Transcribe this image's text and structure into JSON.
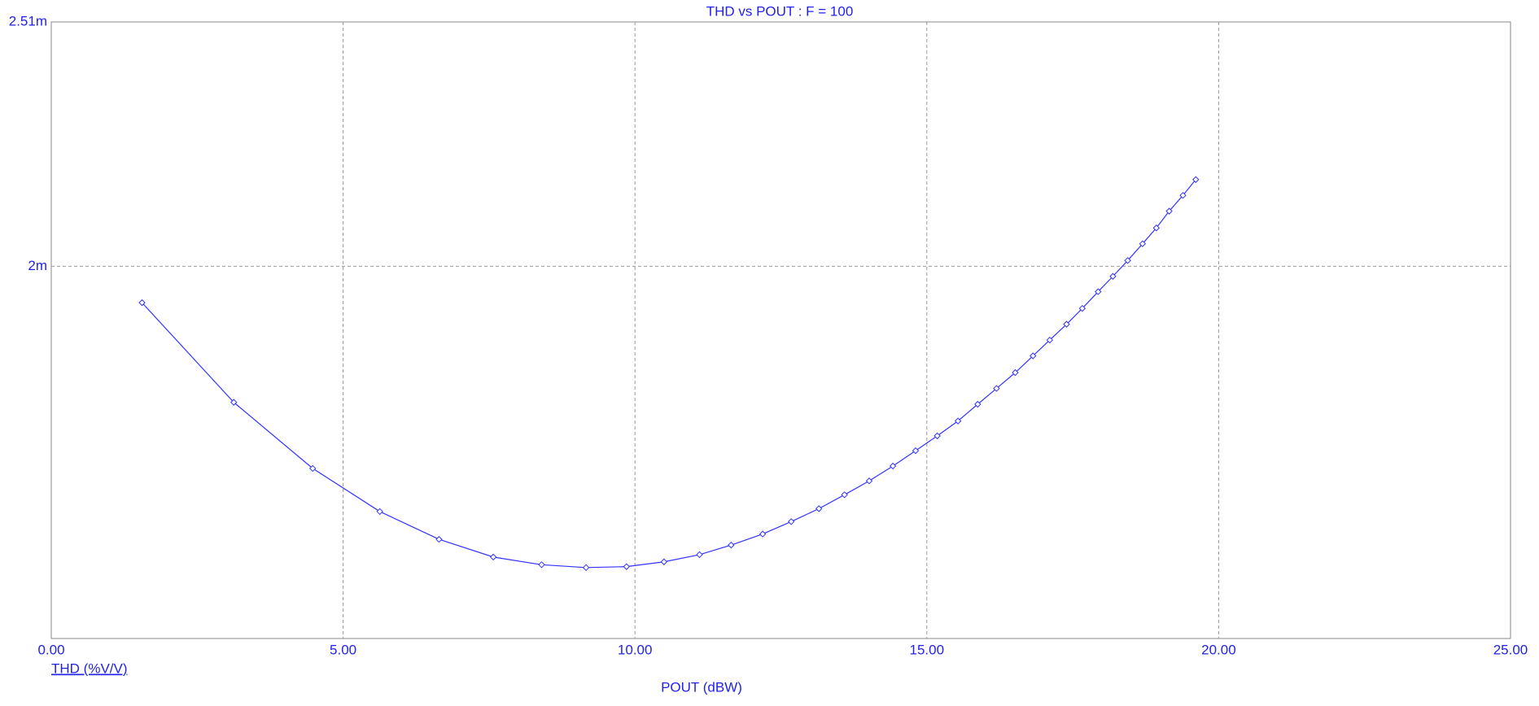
{
  "chart_data": {
    "type": "line",
    "title": "THD vs POUT : F = 100",
    "x_label": "POUT (dBW)",
    "xlim": [
      0,
      25
    ],
    "xticks": [
      {
        "value": 0,
        "label": "0.00"
      },
      {
        "value": 5,
        "label": "5.00"
      },
      {
        "value": 10,
        "label": "10.00"
      },
      {
        "value": 15,
        "label": "15.00"
      },
      {
        "value": 20,
        "label": "20.00"
      },
      {
        "value": 25,
        "label": "25.00"
      }
    ],
    "ylim": [
      0.001223,
      0.00251
    ],
    "yticks": [
      {
        "value": 0.00251,
        "label": "2.51m"
      },
      {
        "value": 0.002,
        "label": "2m"
      }
    ],
    "grid": true,
    "x": [
      1.555,
      3.127,
      4.479,
      5.629,
      6.643,
      7.573,
      8.401,
      9.162,
      9.855,
      10.497,
      11.106,
      11.647,
      12.188,
      12.677,
      13.151,
      13.59,
      14.013,
      14.419,
      14.808,
      15.179,
      15.534,
      15.872,
      16.194,
      16.515,
      16.819,
      17.106,
      17.394,
      17.664,
      17.935,
      18.188,
      18.442,
      18.696,
      18.932,
      19.152,
      19.388,
      19.608
    ],
    "series": [
      {
        "name": "THD (%V/V)",
        "color": "#3333ff",
        "values": [
          0.001924,
          0.001716,
          0.001578,
          0.001488,
          0.00143,
          0.001393,
          0.001377,
          0.001371,
          0.001373,
          0.001383,
          0.001398,
          0.001418,
          0.001441,
          0.001467,
          0.001494,
          0.001523,
          0.001552,
          0.001583,
          0.001615,
          0.001646,
          0.001677,
          0.001712,
          0.001745,
          0.001778,
          0.001813,
          0.001846,
          0.001879,
          0.001912,
          0.001947,
          0.001979,
          0.002012,
          0.002047,
          0.00208,
          0.002115,
          0.002148,
          0.002181
        ]
      }
    ]
  }
}
